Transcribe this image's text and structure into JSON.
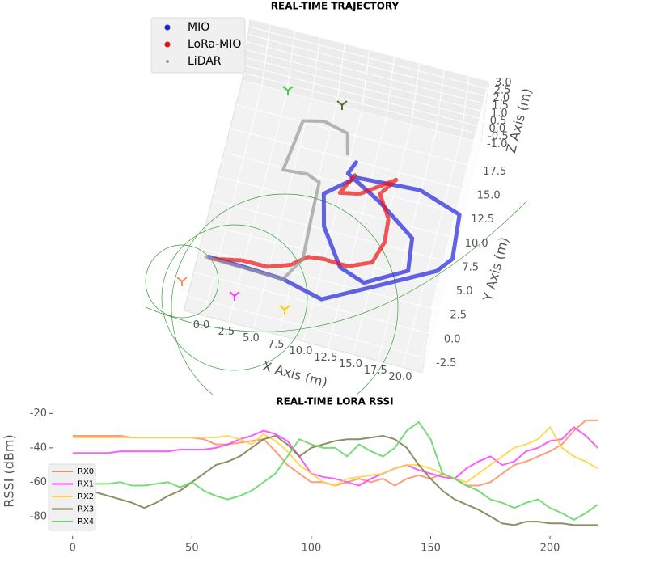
{
  "chart_data": [
    {
      "type": "scatter3d",
      "title": "REAL-TIME TRAJECTORY",
      "xlabel": "X Axis (m)",
      "ylabel": "Y Axis (m)",
      "zlabel": "Z Axis (m)",
      "xlim": [
        -2,
        22
      ],
      "ylim": [
        -4,
        20
      ],
      "zlim": [
        -1,
        3
      ],
      "xticks": [
        {
          "value": 0,
          "label": "0.0"
        },
        2.5,
        {
          "value": 5,
          "label": "5.0"
        },
        7.5,
        {
          "value": 10,
          "label": "10.0"
        },
        12.5,
        {
          "value": 15,
          "label": "15.0"
        },
        17.5,
        {
          "value": 20,
          "label": "20.0"
        }
      ],
      "yticks": [
        -2.5,
        {
          "value": 0,
          "label": "0.0"
        },
        2.5,
        {
          "value": 5,
          "label": "5.0"
        },
        7.5,
        {
          "value": 10,
          "label": "10.0"
        },
        12.5,
        {
          "value": 15,
          "label": "15.0"
        },
        17.5
      ],
      "zticks": [
        {
          "value": -1,
          "label": "-1.0"
        },
        -0.5,
        {
          "value": 0,
          "label": "0.0"
        },
        0.5,
        {
          "value": 1,
          "label": "1.0"
        },
        1.5,
        {
          "value": 2,
          "label": "2.0"
        },
        2.5,
        {
          "value": 3,
          "label": "3.0"
        }
      ],
      "legend": "upper left",
      "series": [
        {
          "name": "MIO",
          "color": "#2222dd",
          "x": [
            -0.9,
            2.5,
            6.6,
            10.7,
            15.2,
            20.9,
            22.1,
            21.7,
            17.4,
            11.1,
            8.4,
            9.2,
            11.7,
            14.3,
            18.2,
            17.8,
            13.9,
            10.2,
            10.7
          ],
          "y": [
            1.9,
            1.8,
            1.6,
            0.6,
            3.1,
            6.3,
            7.9,
            12.4,
            13.8,
            13.4,
            11.0,
            7.8,
            4.2,
            3.3,
            5.6,
            8.9,
            11.6,
            13.6,
            14.9
          ]
        },
        {
          "name": "LoRa-MIO",
          "color": "#ee1111",
          "x": [
            -0.4,
            2.3,
            4.8,
            7.0,
            8.4,
            9.9,
            12.4,
            14.6,
            15.3,
            15.1,
            13.7,
            14.9,
            11.8,
            9.9,
            11.0
          ],
          "y": [
            1.8,
            2.4,
            2.4,
            3.2,
            4.4,
            4.6,
            4.5,
            5.5,
            7.8,
            10.2,
            12.4,
            14.2,
            11.9,
            11.5,
            13.8
          ]
        },
        {
          "name": "LiDAR",
          "color": "#999999",
          "x": [
            -1.2,
            6.6,
            8.0,
            7.8,
            7.7,
            6.4,
            4.0,
            4.3,
            4.7,
            6.7,
            9.2,
            9.7
          ],
          "y": [
            1.8,
            1.6,
            4.1,
            8.3,
            12.0,
            12.5,
            12.3,
            14.5,
            17.6,
            18.1,
            17.5,
            15.5
          ]
        }
      ]
    },
    {
      "type": "line",
      "title": "REAL-TIME LORA RSSI",
      "ylabel": "RSSI (dBm)",
      "xlim": [
        -5,
        222
      ],
      "ylim": [
        -90,
        -17
      ],
      "xticks": [
        0,
        50,
        100,
        150,
        200
      ],
      "yticks": [
        -20,
        -40,
        -60,
        -80
      ],
      "legend": "lower left",
      "x": [
        0,
        5,
        10,
        15,
        20,
        25,
        30,
        35,
        40,
        45,
        50,
        55,
        60,
        65,
        70,
        75,
        80,
        85,
        90,
        95,
        100,
        105,
        110,
        115,
        120,
        125,
        130,
        135,
        140,
        145,
        150,
        155,
        160,
        165,
        170,
        175,
        180,
        185,
        190,
        195,
        200,
        205,
        210,
        215,
        220
      ],
      "series": [
        {
          "name": "RX0",
          "color": "#fc8d62",
          "values": [
            -33,
            -33,
            -33,
            -33,
            -33,
            -34,
            -34,
            -34,
            -34,
            -34,
            -34,
            -35,
            -38,
            -38,
            -37,
            -36,
            -35,
            -42,
            -50,
            -55,
            -60,
            -60,
            -62,
            -60,
            -58,
            -60,
            -58,
            -62,
            -58,
            -56,
            -58,
            -55,
            -58,
            -62,
            -62,
            -60,
            -55,
            -50,
            -48,
            -45,
            -42,
            -38,
            -30,
            -24,
            -24
          ]
        },
        {
          "name": "RX1",
          "color": "#ff40ff",
          "values": [
            -43,
            -43,
            -43,
            -43,
            -42,
            -42,
            -42,
            -42,
            -42,
            -41,
            -41,
            -41,
            -40,
            -38,
            -35,
            -33,
            -30,
            -32,
            -36,
            -45,
            -55,
            -57,
            -58,
            -60,
            -62,
            -58,
            -55,
            -52,
            -50,
            -53,
            -55,
            -57,
            -58,
            -52,
            -48,
            -45,
            -50,
            -48,
            -42,
            -40,
            -36,
            -35,
            -28,
            -33,
            -40
          ]
        },
        {
          "name": "RX2",
          "color": "#ffd23f",
          "values": [
            -34,
            -34,
            -34,
            -34,
            -34,
            -34,
            -34,
            -34,
            -34,
            -34,
            -34,
            -34,
            -34,
            -33,
            -35,
            -38,
            -32,
            -36,
            -42,
            -50,
            -55,
            -60,
            -62,
            -58,
            -57,
            -56,
            -55,
            -52,
            -50,
            -50,
            -52,
            -55,
            -58,
            -60,
            -55,
            -50,
            -45,
            -40,
            -38,
            -35,
            -28,
            -40,
            -45,
            -48,
            -52
          ]
        },
        {
          "name": "RX3",
          "color": "#7a7a4a",
          "values": [
            -65,
            -65,
            -66,
            -68,
            -70,
            -72,
            -75,
            -72,
            -68,
            -65,
            -60,
            -55,
            -50,
            -48,
            -45,
            -40,
            -35,
            -33,
            -38,
            -45,
            -40,
            -38,
            -36,
            -35,
            -35,
            -34,
            -33,
            -35,
            -40,
            -50,
            -58,
            -65,
            -70,
            -73,
            -76,
            -80,
            -84,
            -85,
            -83,
            -83,
            -84,
            -84,
            -85,
            -85,
            -85
          ]
        },
        {
          "name": "RX4",
          "color": "#5fd65f",
          "values": [
            -60,
            -60,
            -61,
            -61,
            -60,
            -62,
            -62,
            -61,
            -60,
            -63,
            -60,
            -65,
            -68,
            -70,
            -68,
            -65,
            -60,
            -55,
            -45,
            -35,
            -38,
            -40,
            -40,
            -45,
            -38,
            -42,
            -45,
            -40,
            -30,
            -25,
            -35,
            -55,
            -58,
            -62,
            -65,
            -70,
            -72,
            -75,
            -72,
            -70,
            -75,
            -78,
            -82,
            -78,
            -73
          ]
        }
      ]
    }
  ]
}
